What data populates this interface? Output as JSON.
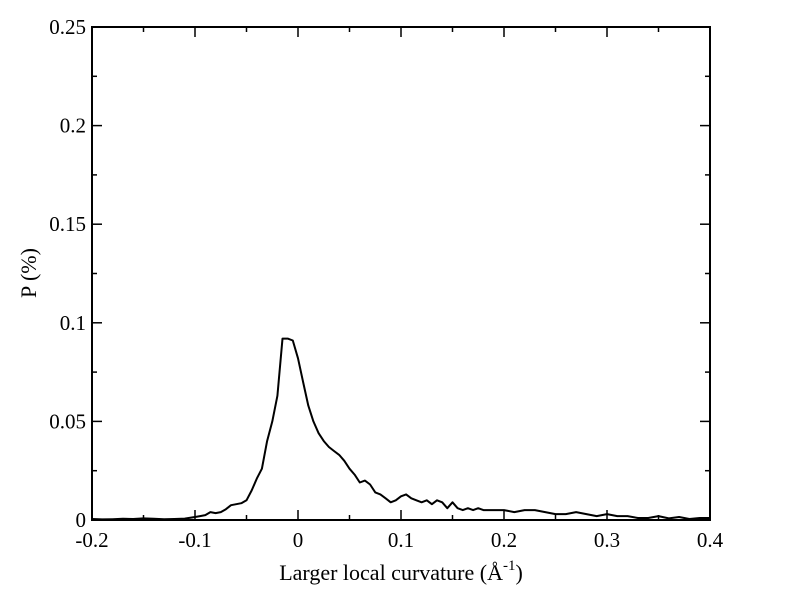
{
  "chart_data": {
    "type": "line",
    "title": "",
    "xlabel": "Larger local curvature (Å",
    "xlabel_sup": "-1",
    "xlabel_close": ")",
    "ylabel": "P (%)",
    "xlim": [
      -0.2,
      0.4
    ],
    "ylim": [
      0,
      0.25
    ],
    "x_ticks": [
      -0.2,
      -0.1,
      0,
      0.1,
      0.2,
      0.3,
      0.4
    ],
    "x_tick_labels": [
      "-0.2",
      "-0.1",
      "0",
      "0.1",
      "0.2",
      "0.3",
      "0.4"
    ],
    "y_ticks": [
      0,
      0.05,
      0.1,
      0.15,
      0.2,
      0.25
    ],
    "y_tick_labels": [
      "0",
      "0.05",
      "0.1",
      "0.15",
      "0.2",
      "0.25"
    ],
    "grid": false,
    "legend": "none",
    "line_color": "#000000",
    "series": [
      {
        "x": [
          -0.2,
          -0.19,
          -0.18,
          -0.17,
          -0.16,
          -0.15,
          -0.14,
          -0.13,
          -0.12,
          -0.11,
          -0.1,
          -0.095,
          -0.09,
          -0.085,
          -0.08,
          -0.075,
          -0.07,
          -0.065,
          -0.06,
          -0.055,
          -0.05,
          -0.045,
          -0.04,
          -0.035,
          -0.03,
          -0.025,
          -0.02,
          -0.015,
          -0.01,
          -0.005,
          0.0,
          0.005,
          0.01,
          0.015,
          0.02,
          0.025,
          0.03,
          0.035,
          0.04,
          0.045,
          0.05,
          0.055,
          0.06,
          0.065,
          0.07,
          0.075,
          0.08,
          0.085,
          0.09,
          0.095,
          0.1,
          0.105,
          0.11,
          0.115,
          0.12,
          0.125,
          0.13,
          0.135,
          0.14,
          0.145,
          0.15,
          0.155,
          0.16,
          0.165,
          0.17,
          0.175,
          0.18,
          0.19,
          0.2,
          0.21,
          0.22,
          0.23,
          0.24,
          0.25,
          0.26,
          0.27,
          0.28,
          0.29,
          0.3,
          0.31,
          0.32,
          0.33,
          0.34,
          0.35,
          0.36,
          0.37,
          0.38,
          0.39,
          0.4
        ],
        "y": [
          0.0005,
          0.0003,
          0.0004,
          0.0006,
          0.0005,
          0.0008,
          0.0006,
          0.0004,
          0.0005,
          0.0007,
          0.0015,
          0.002,
          0.0025,
          0.004,
          0.0035,
          0.004,
          0.0055,
          0.0075,
          0.008,
          0.0085,
          0.01,
          0.015,
          0.021,
          0.026,
          0.04,
          0.05,
          0.063,
          0.092,
          0.092,
          0.091,
          0.082,
          0.07,
          0.058,
          0.05,
          0.044,
          0.04,
          0.037,
          0.035,
          0.033,
          0.03,
          0.026,
          0.023,
          0.019,
          0.02,
          0.018,
          0.014,
          0.013,
          0.011,
          0.009,
          0.01,
          0.012,
          0.013,
          0.011,
          0.01,
          0.009,
          0.01,
          0.008,
          0.01,
          0.009,
          0.006,
          0.009,
          0.006,
          0.005,
          0.006,
          0.005,
          0.006,
          0.005,
          0.005,
          0.005,
          0.004,
          0.005,
          0.005,
          0.004,
          0.003,
          0.003,
          0.004,
          0.003,
          0.002,
          0.003,
          0.002,
          0.002,
          0.001,
          0.001,
          0.002,
          0.0008,
          0.0015,
          0.0005,
          0.001,
          0.001
        ]
      }
    ]
  }
}
